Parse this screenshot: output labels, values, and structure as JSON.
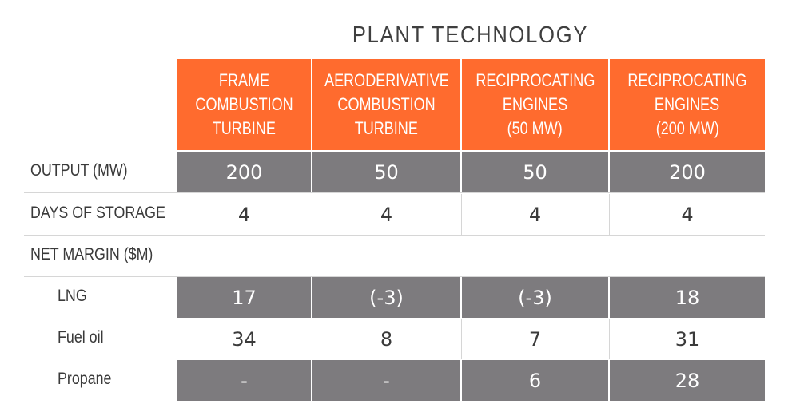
{
  "title": "PLANT TECHNOLOGY",
  "columns": [
    {
      "lines": [
        "FRAME",
        "COMBUSTION",
        "TURBINE"
      ]
    },
    {
      "lines": [
        "AERODERIVATIVE",
        "COMBUSTION",
        "TURBINE"
      ]
    },
    {
      "lines": [
        "RECIPROCATING",
        "ENGINES",
        "(50 MW)"
      ]
    },
    {
      "lines": [
        "RECIPROCATING",
        "ENGINES",
        "(200 MW)"
      ]
    }
  ],
  "rows": [
    {
      "label": "OUTPUT (MW)",
      "values": [
        "200",
        "50",
        "50",
        "200"
      ],
      "shade": "dark"
    },
    {
      "label": "DAYS OF STORAGE",
      "values": [
        "4",
        "4",
        "4",
        "4"
      ],
      "shade": "light"
    },
    {
      "label": "NET MARGIN ($M)",
      "values": [],
      "shade": "none"
    },
    {
      "label": "LNG",
      "values": [
        "17",
        "(-3)",
        "(-3)",
        "18"
      ],
      "shade": "dark"
    },
    {
      "label": "Fuel oil",
      "values": [
        "34",
        "8",
        "7",
        "31"
      ],
      "shade": "light"
    },
    {
      "label": "Propane",
      "values": [
        "-",
        "-",
        "6",
        "28"
      ],
      "shade": "dark"
    }
  ],
  "colors": {
    "header": "#ff6b2e",
    "dark_row": "#7d7b7e",
    "text": "#3a3a3a"
  },
  "chart_data": {
    "type": "table",
    "title": "PLANT TECHNOLOGY",
    "columns": [
      "FRAME COMBUSTION TURBINE",
      "AERODERIVATIVE COMBUSTION TURBINE",
      "RECIPROCATING ENGINES (50 MW)",
      "RECIPROCATING ENGINES (200 MW)"
    ],
    "rows": [
      {
        "label": "OUTPUT (MW)",
        "values": [
          "200",
          "50",
          "50",
          "200"
        ]
      },
      {
        "label": "DAYS OF STORAGE",
        "values": [
          "4",
          "4",
          "4",
          "4"
        ]
      },
      {
        "label": "NET MARGIN ($M)",
        "values": []
      },
      {
        "label": "LNG",
        "values": [
          "17",
          "(-3)",
          "(-3)",
          "18"
        ]
      },
      {
        "label": "Fuel oil",
        "values": [
          "34",
          "8",
          "7",
          "31"
        ]
      },
      {
        "label": "Propane",
        "values": [
          "-",
          "-",
          "6",
          "28"
        ]
      }
    ]
  }
}
